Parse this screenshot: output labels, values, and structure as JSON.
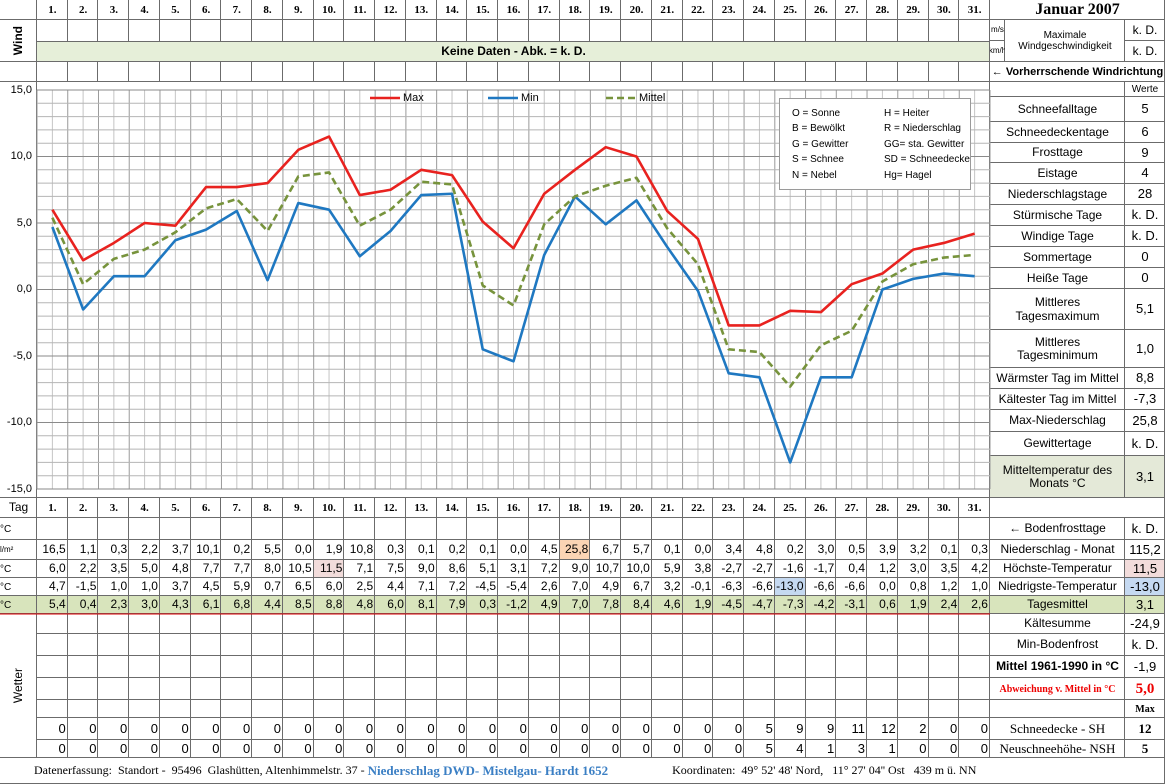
{
  "header": {
    "title": "Januar 2007"
  },
  "wind": {
    "side_label": "Wind",
    "unit_ms": "m/s",
    "unit_kmh": "km/h",
    "label": "Maximale Windgeschwindigkeit",
    "value_ms": "k. D.",
    "value_kmh": "k. D.",
    "banner": "Keine Daten - Abk. = k. D.",
    "direction": "← Vorherrschende Windrichtung"
  },
  "chart_data": {
    "type": "line",
    "categories": [
      "1.",
      "2.",
      "3.",
      "4.",
      "5.",
      "6.",
      "7.",
      "8.",
      "9.",
      "10.",
      "11.",
      "12.",
      "13.",
      "14.",
      "15.",
      "16.",
      "17.",
      "18.",
      "19.",
      "20.",
      "21.",
      "22.",
      "23.",
      "24.",
      "25.",
      "26.",
      "27.",
      "28.",
      "29.",
      "30.",
      "31."
    ],
    "ylim": [
      -15,
      15
    ],
    "yticks": [
      {
        "value": -15,
        "label": "-15,0"
      },
      {
        "value": -10,
        "label": "-10,0"
      },
      {
        "value": -5,
        "label": "-5,0"
      },
      {
        "value": 0,
        "label": "0,0"
      },
      {
        "value": 5,
        "label": "5,0"
      },
      {
        "value": 10,
        "label": "10,0"
      },
      {
        "value": 15,
        "label": "15,0"
      }
    ],
    "grid": true,
    "legend_position": "top",
    "series": [
      {
        "name": "Max",
        "color": "#e8221f",
        "dashed": false,
        "values": [
          6.0,
          2.2,
          3.5,
          5.0,
          4.8,
          7.7,
          7.7,
          8.0,
          10.5,
          11.5,
          7.1,
          7.5,
          9.0,
          8.6,
          5.1,
          3.1,
          7.2,
          9.0,
          10.7,
          10.0,
          5.9,
          3.8,
          -2.7,
          -2.7,
          -1.6,
          -1.7,
          0.4,
          1.2,
          3.0,
          3.5,
          4.2
        ],
        "value_labels": [
          "6,0",
          "2,2",
          "3,5",
          "5,0",
          "4,8",
          "7,7",
          "7,7",
          "8,0",
          "10,5",
          "11,5",
          "7,1",
          "7,5",
          "9,0",
          "8,6",
          "5,1",
          "3,1",
          "7,2",
          "9,0",
          "10,7",
          "10,0",
          "5,9",
          "3,8",
          "-2,7",
          "-2,7",
          "-1,6",
          "-1,7",
          "0,4",
          "1,2",
          "3,0",
          "3,5",
          "4,2"
        ]
      },
      {
        "name": "Min",
        "color": "#1f78c1",
        "dashed": false,
        "values": [
          4.7,
          -1.5,
          1.0,
          1.0,
          3.7,
          4.5,
          5.9,
          0.7,
          6.5,
          6.0,
          2.5,
          4.4,
          7.1,
          7.2,
          -4.5,
          -5.4,
          2.6,
          7.0,
          4.9,
          6.7,
          3.2,
          -0.1,
          -6.3,
          -6.6,
          -13.0,
          -6.6,
          -6.6,
          0.0,
          0.8,
          1.2,
          1.0
        ],
        "value_labels": [
          "4,7",
          "-1,5",
          "1,0",
          "1,0",
          "3,7",
          "4,5",
          "5,9",
          "0,7",
          "6,5",
          "6,0",
          "2,5",
          "4,4",
          "7,1",
          "7,2",
          "-4,5",
          "-5,4",
          "2,6",
          "7,0",
          "4,9",
          "6,7",
          "3,2",
          "-0,1",
          "-6,3",
          "-6,6",
          "-13,0",
          "-6,6",
          "-6,6",
          "0,0",
          "0,8",
          "1,2",
          "1,0"
        ]
      },
      {
        "name": "Mittel",
        "color": "#77933c",
        "dashed": true,
        "values": [
          5.4,
          0.4,
          2.3,
          3.0,
          4.3,
          6.1,
          6.8,
          4.4,
          8.5,
          8.8,
          4.8,
          6.0,
          8.1,
          7.9,
          0.3,
          -1.2,
          4.9,
          7.0,
          7.8,
          8.4,
          4.6,
          1.9,
          -4.5,
          -4.7,
          -7.3,
          -4.2,
          -3.1,
          0.6,
          1.9,
          2.4,
          2.6
        ],
        "value_labels": [
          "5,4",
          "0,4",
          "2,3",
          "3,0",
          "4,3",
          "6,1",
          "6,8",
          "4,4",
          "8,5",
          "8,8",
          "4,8",
          "6,0",
          "8,1",
          "7,9",
          "0,3",
          "-1,2",
          "4,9",
          "7,0",
          "7,8",
          "8,4",
          "4,6",
          "1,9",
          "-4,5",
          "-4,7",
          "-7,3",
          "-4,2",
          "-3,1",
          "0,6",
          "1,9",
          "2,4",
          "2,6"
        ]
      }
    ],
    "annotations": [
      "O = Sonne",
      "B = Bewölkt",
      "G = Gewitter",
      "S = Schnee",
      "N = Nebel",
      "H = Heiter",
      "R = Niederschlag",
      "GG= sta. Gewitter",
      "SD = Schneedecke",
      "Hg= Hagel"
    ]
  },
  "table": {
    "tag_label": "Tag",
    "unit_c": "°C",
    "unit_precip": "l/m²",
    "wetter": "Wetter",
    "precipitation": [
      "16,5",
      "1,1",
      "0,3",
      "2,2",
      "3,7",
      "10,1",
      "0,2",
      "5,5",
      "0,0",
      "1,9",
      "10,8",
      "0,3",
      "0,1",
      "0,2",
      "0,1",
      "0,0",
      "4,5",
      "25,8",
      "6,7",
      "5,7",
      "0,1",
      "0,0",
      "3,4",
      "4,8",
      "0,2",
      "3,0",
      "0,5",
      "3,9",
      "3,2",
      "0,1",
      "0,3"
    ],
    "sh": [
      0,
      0,
      0,
      0,
      0,
      0,
      0,
      0,
      0,
      0,
      0,
      0,
      0,
      0,
      0,
      0,
      0,
      0,
      0,
      0,
      0,
      0,
      0,
      5,
      9,
      9,
      11,
      12,
      2,
      0,
      0
    ],
    "nsh": [
      0,
      0,
      0,
      0,
      0,
      0,
      0,
      0,
      0,
      0,
      0,
      0,
      0,
      0,
      0,
      0,
      0,
      0,
      0,
      0,
      0,
      0,
      0,
      5,
      4,
      1,
      3,
      1,
      0,
      0,
      0
    ]
  },
  "stats": {
    "header": "Werte",
    "upper": [
      {
        "label": "Schneefalltage",
        "value": "5"
      },
      {
        "label": "Schneedeckentage",
        "value": "6"
      },
      {
        "label": "Frosttage",
        "value": "9"
      },
      {
        "label": "Eistage",
        "value": "4"
      },
      {
        "label": "Niederschlagstage",
        "value": "28"
      },
      {
        "label": "Stürmische Tage",
        "value": "k. D."
      },
      {
        "label": "Windige Tage",
        "value": "k. D."
      },
      {
        "label": "Sommertage",
        "value": "0"
      },
      {
        "label": "Heiße Tage",
        "value": "0"
      },
      {
        "label": "Mittleres Tagesmaximum",
        "value": "5,1"
      },
      {
        "label": "Mittleres Tagesminimum",
        "value": "1,0"
      },
      {
        "label": "Wärmster Tag im Mittel",
        "value": "8,8"
      },
      {
        "label": "Kältester Tag im Mittel",
        "value": "-7,3"
      },
      {
        "label": "Max-Niederschlag",
        "value": "25,8"
      },
      {
        "label": "Gewittertage",
        "value": "k. D."
      },
      {
        "label": "Mitteltemperatur des Monats °C",
        "value": "3,1"
      }
    ],
    "lower": [
      {
        "label": "← Bodenfrosttage",
        "value": "k. D."
      },
      {
        "label": "Niederschlag - Monat",
        "value": "115,2"
      },
      {
        "label": "Höchste-Temperatur",
        "value": "11,5"
      },
      {
        "label": "Niedrigste-Temperatur",
        "value": "-13,0"
      },
      {
        "label": "Tagesmittel",
        "value": "3,1"
      },
      {
        "label": "Kältesumme",
        "value": "-24,9"
      },
      {
        "label": "Min-Bodenfrost",
        "value": "k. D."
      },
      {
        "label": "Mittel 1961-1990 in °C",
        "value": "-1,9"
      },
      {
        "label": "Abweichung v. Mittel in °C",
        "value": "5,0"
      }
    ],
    "max_label": "Max",
    "snow": [
      {
        "label": "Schneedecke -  SH",
        "value": "12"
      },
      {
        "label": "Neuschneehöhe- NSH",
        "value": "5"
      }
    ]
  },
  "footer": {
    "left": "Datenerfassung:  Standort -  95496  Glashütten, Altenhimmelstr. 37 - ",
    "highlight": "Niederschlag DWD- Mistelgau- Hardt 1652",
    "right": "Koordinaten:  49° 52' 48' Nord,   11° 27' 04'' Ost   439 m ü. NN"
  }
}
